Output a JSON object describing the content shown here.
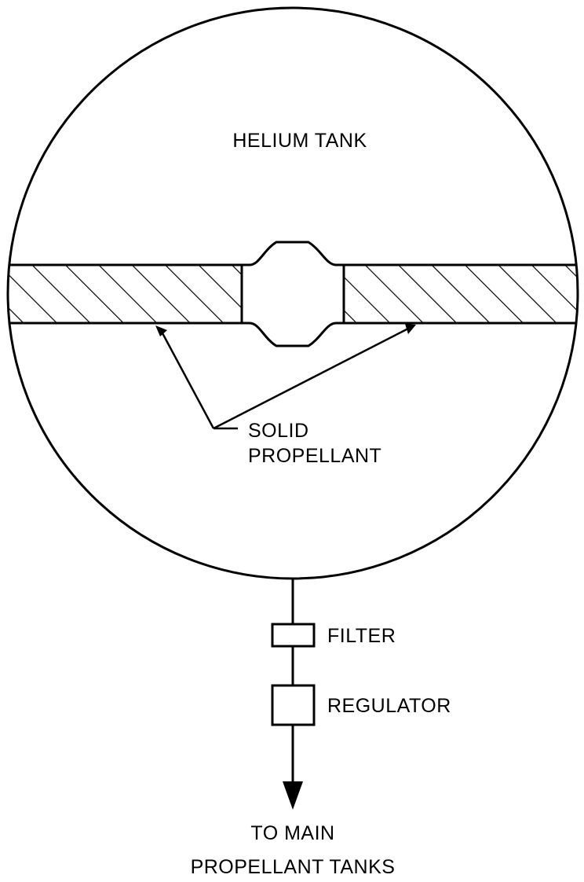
{
  "diagram": {
    "tank_label": "HELIUM TANK",
    "propellant_label_line1": "SOLID",
    "propellant_label_line2": "PROPELLANT",
    "filter_label": "FILTER",
    "regulator_label": "REGULATOR",
    "outlet_label_line1": "TO MAIN",
    "outlet_label_line2": "PROPELLANT TANKS"
  }
}
